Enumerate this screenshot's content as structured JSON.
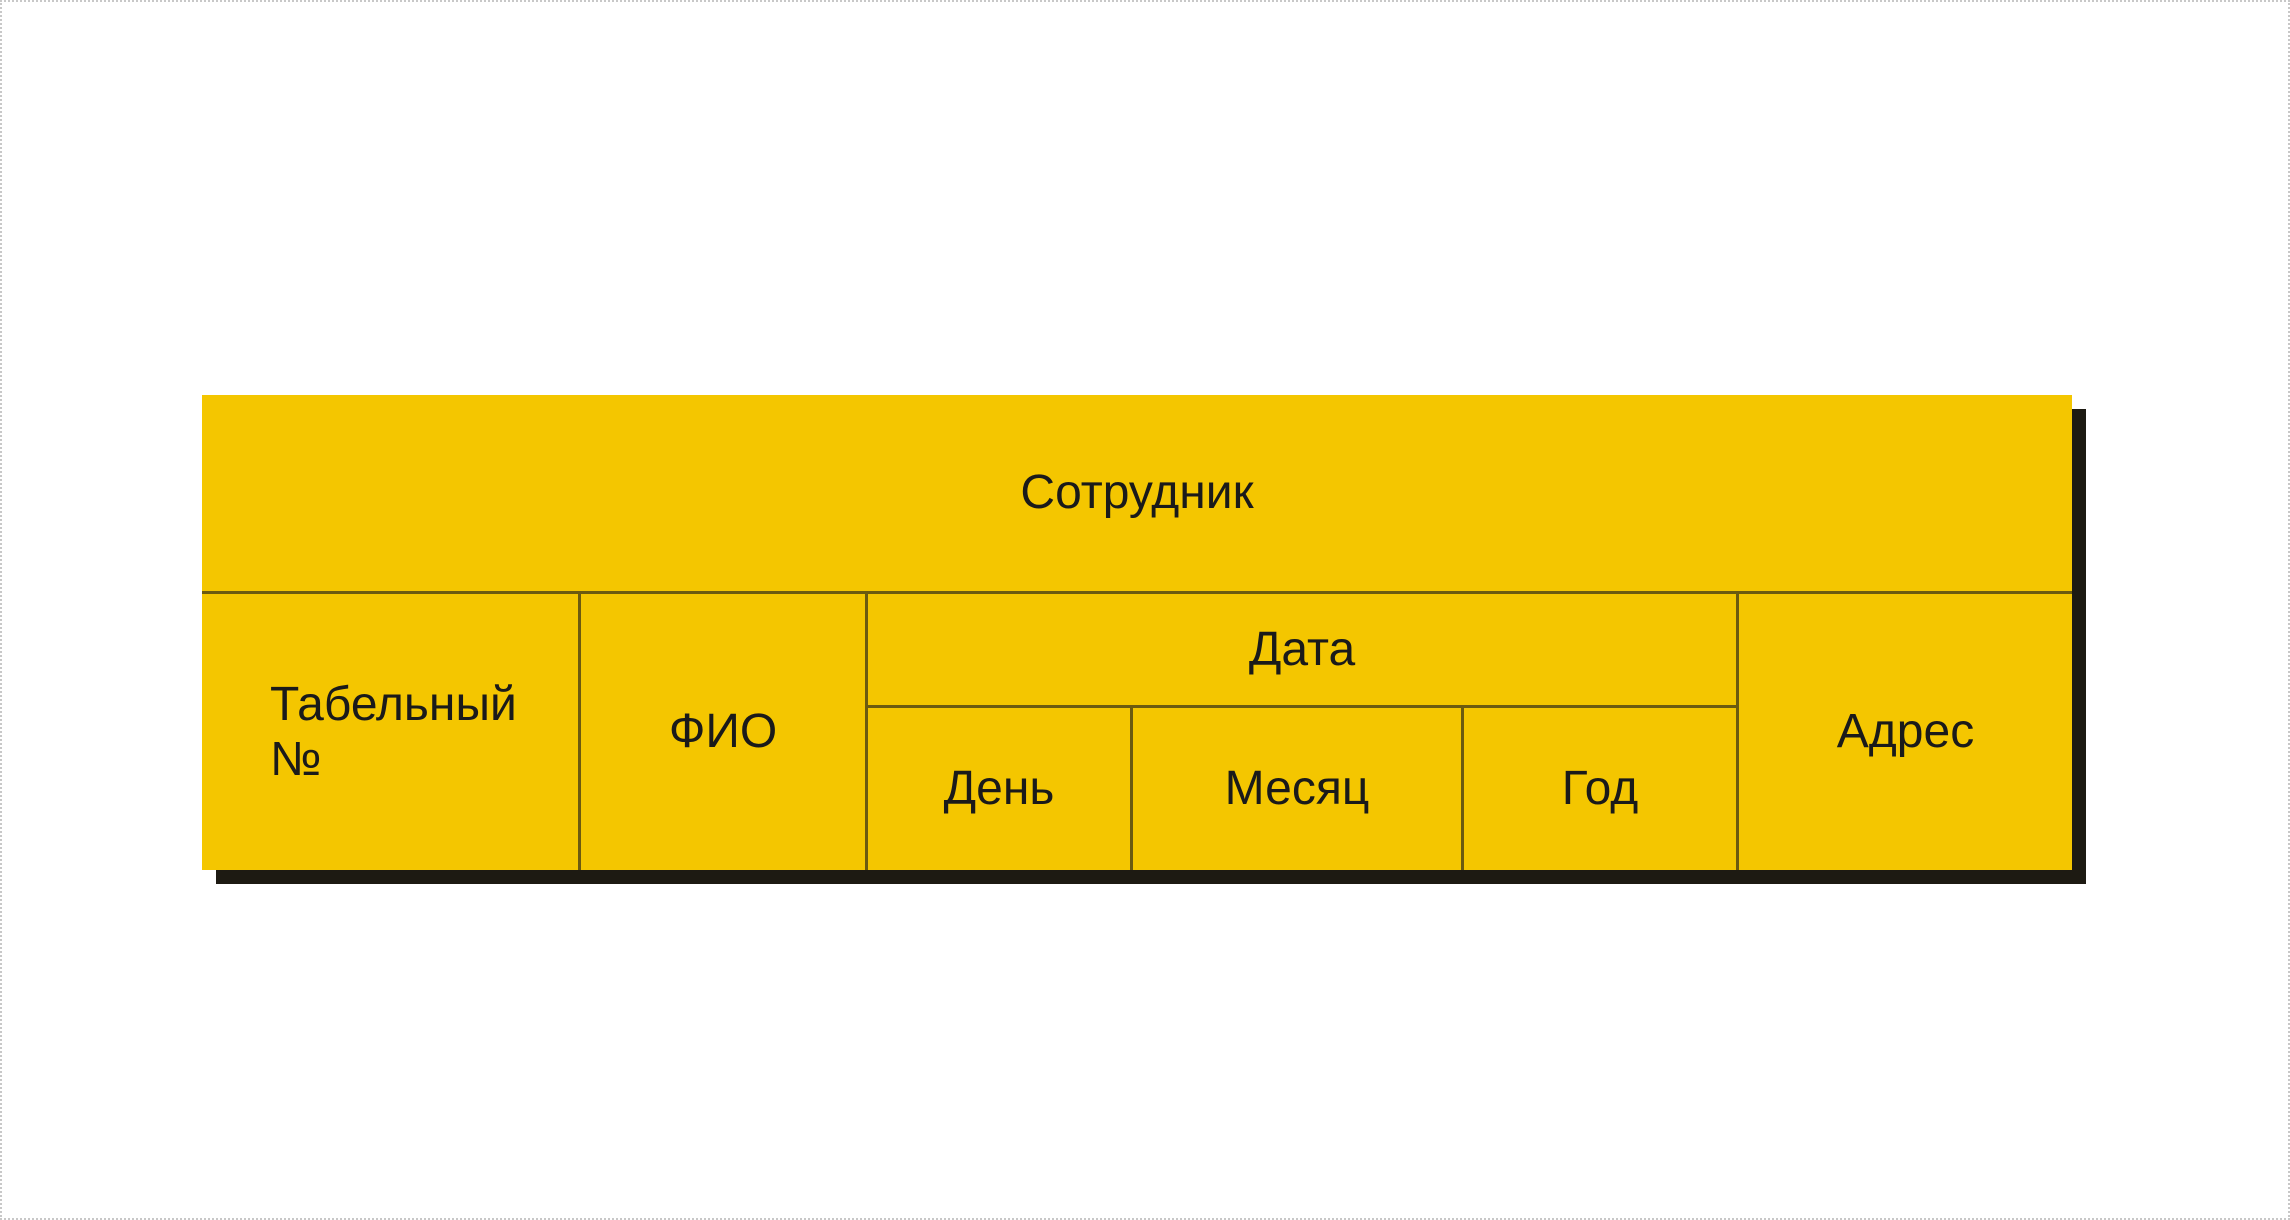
{
  "table": {
    "root": "Сотрудник",
    "columns": {
      "tab_number": "Табельный №",
      "fio": "ФИО",
      "date": "Дата",
      "day": "День",
      "month": "Месяц",
      "year": "Год",
      "address": "Адрес"
    }
  },
  "colors": {
    "fill": "#f4c600",
    "lines": "#6b5a10",
    "shadow": "#1d1a12"
  }
}
